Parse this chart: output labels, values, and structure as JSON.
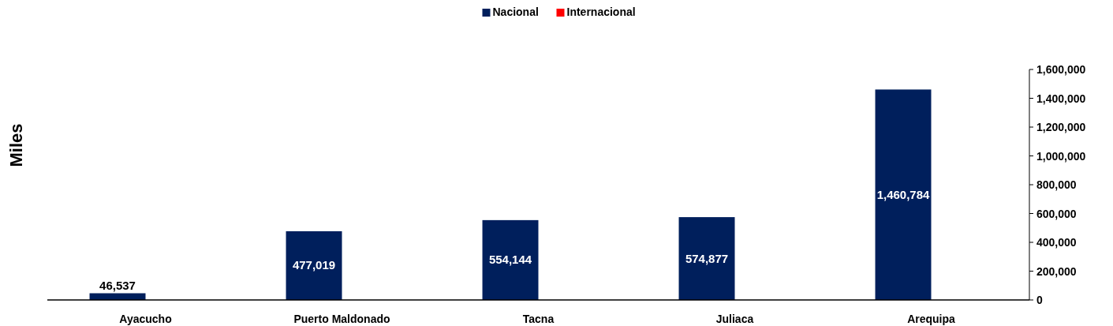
{
  "chart_data": {
    "type": "bar",
    "ylabel": "Miles",
    "categories": [
      "Ayacucho",
      "Puerto Maldonado",
      "Tacna",
      "Juliaca",
      "Arequipa"
    ],
    "series": [
      {
        "name": "Nacional",
        "color": "#001f5c",
        "values": [
          46537,
          477019,
          554144,
          574877,
          1460784
        ],
        "value_labels": [
          "46,537",
          "477,019",
          "554,144",
          "574,877",
          "1,460,784"
        ]
      },
      {
        "name": "Internacional",
        "color": "#ff0000",
        "values": [
          null,
          null,
          null,
          null,
          null
        ]
      }
    ],
    "ylim": [
      0,
      1600000
    ],
    "yticks": [
      {
        "value": 0,
        "label": "0"
      },
      {
        "value": 200000,
        "label": "200,000"
      },
      {
        "value": 400000,
        "label": "400,000"
      },
      {
        "value": 600000,
        "label": "600,000"
      },
      {
        "value": 800000,
        "label": "800,000"
      },
      {
        "value": 1000000,
        "label": "1,000,000"
      },
      {
        "value": 1200000,
        "label": "1,200,000"
      },
      {
        "value": 1400000,
        "label": "1,400,000"
      },
      {
        "value": 1600000,
        "label": "1,600,000"
      }
    ],
    "legend": "top",
    "grid": false
  }
}
